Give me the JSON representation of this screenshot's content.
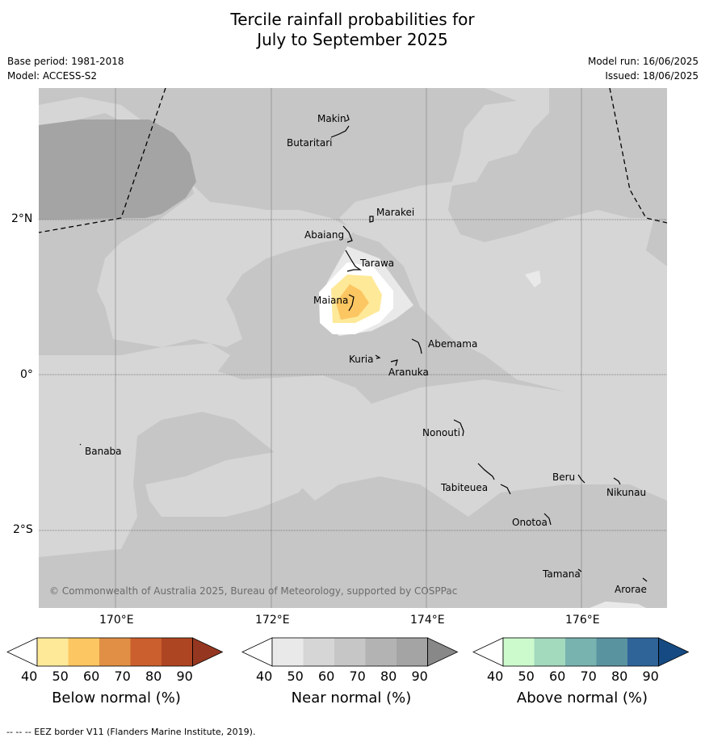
{
  "title_line1": "Tercile rainfall probabilities for",
  "title_line2": "July to September 2025",
  "base_period": "Base period: 1981-2018",
  "model": "Model: ACCESS-S2",
  "model_run": "Model run: 16/06/2025",
  "issued": "Issued: 18/06/2025",
  "copyright": "© Commonwealth of Australia 2025, Bureau of Meteorology, supported by COSPPac",
  "footer": "--  --  -- EEZ border V11 (Flanders Marine Institute, 2019).",
  "lat_labels": [
    "2°N",
    "0°",
    "2°S"
  ],
  "lon_labels": [
    "170°E",
    "172°E",
    "174°E",
    "176°E"
  ],
  "places": [
    {
      "name": "Makin"
    },
    {
      "name": "Butaritari"
    },
    {
      "name": "Marakei"
    },
    {
      "name": "Abaiang"
    },
    {
      "name": "Tarawa"
    },
    {
      "name": "Maiana"
    },
    {
      "name": "Abemama"
    },
    {
      "name": "Kuria"
    },
    {
      "name": "Aranuka"
    },
    {
      "name": "Banaba"
    },
    {
      "name": "Nonouti"
    },
    {
      "name": "Beru"
    },
    {
      "name": "Tabiteuea"
    },
    {
      "name": "Nikunau"
    },
    {
      "name": "Onotoa"
    },
    {
      "name": "Tamana"
    },
    {
      "name": "Arorae"
    }
  ],
  "colorbars": [
    {
      "title": "Below normal (%)",
      "ticks": [
        "40",
        "50",
        "60",
        "70",
        "80",
        "90"
      ],
      "colors": [
        "#ffffff",
        "#fee999",
        "#fcc662",
        "#e08f44",
        "#cb5f2e",
        "#ae4522",
        "#953720"
      ]
    },
    {
      "title": "Near normal (%)",
      "ticks": [
        "40",
        "50",
        "60",
        "70",
        "80",
        "90"
      ],
      "colors": [
        "#ffffff",
        "#e9e9e9",
        "#d6d6d6",
        "#c6c6c6",
        "#b3b3b3",
        "#a4a4a4",
        "#888888"
      ]
    },
    {
      "title": "Above normal (%)",
      "ticks": [
        "40",
        "50",
        "60",
        "70",
        "80",
        "90"
      ],
      "colors": [
        "#ffffff",
        "#ccfacd",
        "#a3d9bd",
        "#78b3b0",
        "#5a93a0",
        "#2f6499",
        "#154b82"
      ]
    }
  ]
}
